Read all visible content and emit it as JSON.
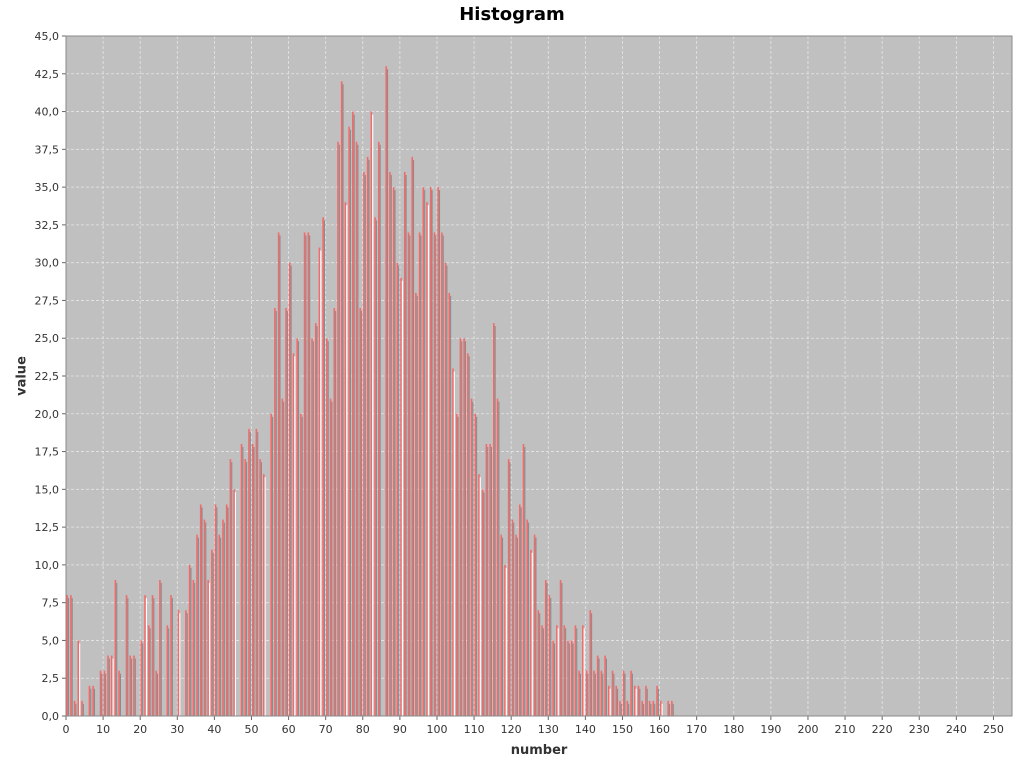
{
  "chart_data": {
    "type": "bar",
    "title": "Histogram",
    "xlabel": "number",
    "ylabel": "value",
    "xlim": [
      0,
      255
    ],
    "ylim": [
      0,
      45
    ],
    "x_ticks": [
      "0",
      "10",
      "20",
      "30",
      "40",
      "50",
      "60",
      "70",
      "80",
      "90",
      "100",
      "110",
      "120",
      "130",
      "140",
      "150",
      "160",
      "170",
      "180",
      "190",
      "200",
      "210",
      "220",
      "230",
      "240",
      "250"
    ],
    "y_ticks": [
      "0,0",
      "2,5",
      "5,0",
      "7,5",
      "10,0",
      "12,5",
      "15,0",
      "17,5",
      "20,0",
      "22,5",
      "25,0",
      "27,5",
      "30,0",
      "32,5",
      "35,0",
      "37,5",
      "40,0",
      "42,5",
      "45,0"
    ],
    "grid": true,
    "colors": {
      "plot_background": "#c0c0c0",
      "series_red": "#f26b6b",
      "series_gray": "#8c8c8c",
      "series_white": "#ffffff",
      "gridline": "#e6e6e6"
    },
    "series": [
      {
        "values": [
          8,
          8,
          1,
          5,
          1,
          2,
          2,
          3,
          3,
          4,
          4,
          9,
          3,
          8,
          4,
          4,
          5,
          8,
          6,
          8,
          3,
          9,
          6,
          8,
          7,
          7,
          10,
          9,
          12,
          14,
          13,
          9,
          11,
          14,
          12,
          13,
          14,
          17,
          15,
          18,
          17,
          19,
          18,
          19,
          17,
          16,
          20,
          27,
          32,
          21,
          27,
          30,
          24,
          25,
          20,
          32,
          32,
          25,
          26,
          31,
          33,
          25,
          21,
          27,
          38,
          42,
          34,
          39,
          40,
          38,
          27,
          36,
          37,
          40,
          33,
          38,
          43,
          36,
          35,
          30,
          29,
          36,
          32,
          37,
          28,
          32,
          35,
          34,
          35,
          32,
          35,
          32,
          30,
          28,
          23,
          20,
          25,
          25,
          24,
          21,
          20,
          16,
          15,
          18,
          18,
          26,
          21,
          12,
          10,
          17,
          13,
          12,
          14,
          18,
          13,
          11,
          12,
          7,
          6,
          9,
          8,
          5,
          6,
          9,
          6,
          5,
          5,
          6,
          3,
          6,
          3,
          7,
          3,
          4,
          3,
          4,
          2,
          3,
          2,
          1,
          3,
          1,
          3,
          2,
          2,
          1,
          2,
          1,
          1,
          2,
          1,
          1,
          1
        ],
        "x": [
          0,
          1,
          2,
          3,
          4,
          6,
          7,
          9,
          10,
          11,
          12,
          13,
          14,
          16,
          17,
          18,
          20,
          21,
          22,
          23,
          24,
          25,
          27,
          28,
          30,
          32,
          33,
          34,
          35,
          36,
          37,
          38,
          39,
          40,
          41,
          42,
          43,
          44,
          45,
          47,
          48,
          49,
          50,
          51,
          52,
          53,
          55,
          56,
          57,
          58,
          59,
          60,
          61,
          62,
          63,
          64,
          65,
          66,
          67,
          68,
          69,
          70,
          71,
          72,
          73,
          74,
          75,
          76,
          77,
          78,
          79,
          80,
          81,
          82,
          83,
          84,
          86,
          87,
          88,
          89,
          90,
          91,
          92,
          93,
          94,
          95,
          96,
          97,
          98,
          99,
          100,
          101,
          102,
          103,
          104,
          105,
          106,
          107,
          108,
          109,
          110,
          111,
          112,
          113,
          114,
          115,
          116,
          117,
          118,
          119,
          120,
          121,
          122,
          123,
          124,
          125,
          126,
          127,
          128,
          129,
          130,
          131,
          132,
          133,
          134,
          135,
          136,
          137,
          138,
          139,
          140,
          141,
          142,
          143,
          144,
          145,
          146,
          147,
          148,
          149,
          150,
          151,
          152,
          153,
          154,
          155,
          156,
          157,
          158,
          159,
          160,
          162,
          163
        ]
      }
    ]
  }
}
